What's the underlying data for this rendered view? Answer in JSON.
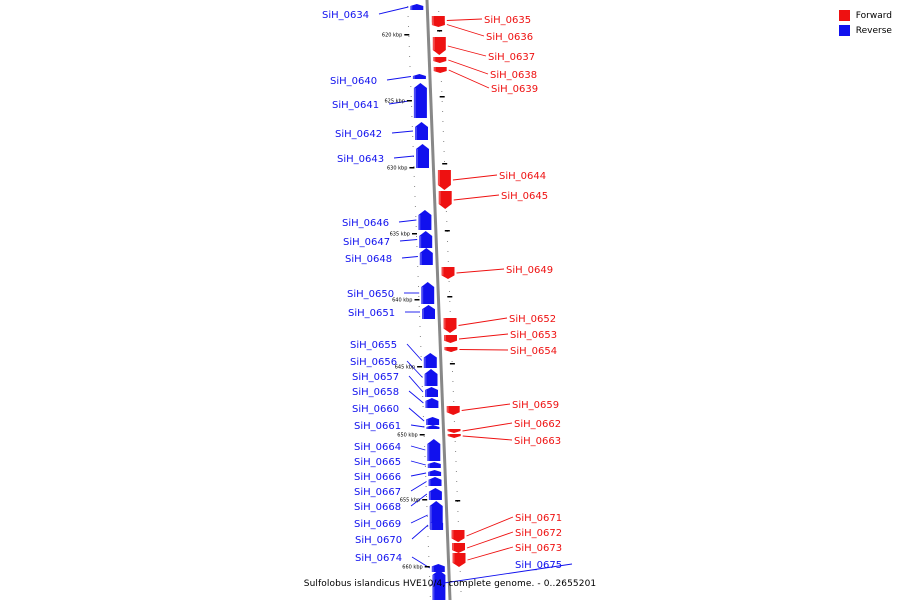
{
  "legend": [
    {
      "label": "Forward",
      "color": "#ee1111"
    },
    {
      "label": "Reverse",
      "color": "#1111ee"
    }
  ],
  "caption": "Sulfolobus islandicus HVE10/4, complete genome. - 0..2655201",
  "colors": {
    "forward": "#ee1111",
    "reverse": "#1111ee",
    "backbone": "#888888"
  },
  "ticks": [
    "620 kbp",
    "625 kbp",
    "630 kbp",
    "635 kbp",
    "640 kbp",
    "645 kbp",
    "650 kbp",
    "655 kbp",
    "660 kbp"
  ],
  "genes": [
    {
      "id": "SiH_0634",
      "strand": "reverse"
    },
    {
      "id": "SiH_0635",
      "strand": "forward"
    },
    {
      "id": "SiH_0636",
      "strand": "forward"
    },
    {
      "id": "SiH_0637",
      "strand": "forward"
    },
    {
      "id": "SiH_0638",
      "strand": "forward"
    },
    {
      "id": "SiH_0639",
      "strand": "forward"
    },
    {
      "id": "SiH_0640",
      "strand": "reverse"
    },
    {
      "id": "SiH_0641",
      "strand": "reverse"
    },
    {
      "id": "SiH_0642",
      "strand": "reverse"
    },
    {
      "id": "SiH_0643",
      "strand": "reverse"
    },
    {
      "id": "SiH_0644",
      "strand": "forward"
    },
    {
      "id": "SiH_0645",
      "strand": "forward"
    },
    {
      "id": "SiH_0646",
      "strand": "reverse"
    },
    {
      "id": "SiH_0647",
      "strand": "reverse"
    },
    {
      "id": "SiH_0648",
      "strand": "reverse"
    },
    {
      "id": "SiH_0649",
      "strand": "forward"
    },
    {
      "id": "SiH_0650",
      "strand": "reverse"
    },
    {
      "id": "SiH_0651",
      "strand": "reverse"
    },
    {
      "id": "SiH_0652",
      "strand": "forward"
    },
    {
      "id": "SiH_0653",
      "strand": "forward"
    },
    {
      "id": "SiH_0654",
      "strand": "forward"
    },
    {
      "id": "SiH_0655",
      "strand": "reverse"
    },
    {
      "id": "SiH_0656",
      "strand": "reverse"
    },
    {
      "id": "SiH_0657",
      "strand": "reverse"
    },
    {
      "id": "SiH_0658",
      "strand": "reverse"
    },
    {
      "id": "SiH_0659",
      "strand": "forward"
    },
    {
      "id": "SiH_0660",
      "strand": "reverse"
    },
    {
      "id": "SiH_0661",
      "strand": "reverse"
    },
    {
      "id": "SiH_0662",
      "strand": "forward"
    },
    {
      "id": "SiH_0663",
      "strand": "forward"
    },
    {
      "id": "SiH_0664",
      "strand": "reverse"
    },
    {
      "id": "SiH_0665",
      "strand": "reverse"
    },
    {
      "id": "SiH_0666",
      "strand": "reverse"
    },
    {
      "id": "SiH_0667",
      "strand": "reverse"
    },
    {
      "id": "SiH_0668",
      "strand": "reverse"
    },
    {
      "id": "SiH_0669",
      "strand": "reverse"
    },
    {
      "id": "SiH_0670",
      "strand": "reverse"
    },
    {
      "id": "SiH_0671",
      "strand": "forward"
    },
    {
      "id": "SiH_0672",
      "strand": "forward"
    },
    {
      "id": "SiH_0673",
      "strand": "forward"
    },
    {
      "id": "SiH_0674",
      "strand": "reverse"
    },
    {
      "id": "SiH_0675",
      "strand": "reverse"
    }
  ]
}
